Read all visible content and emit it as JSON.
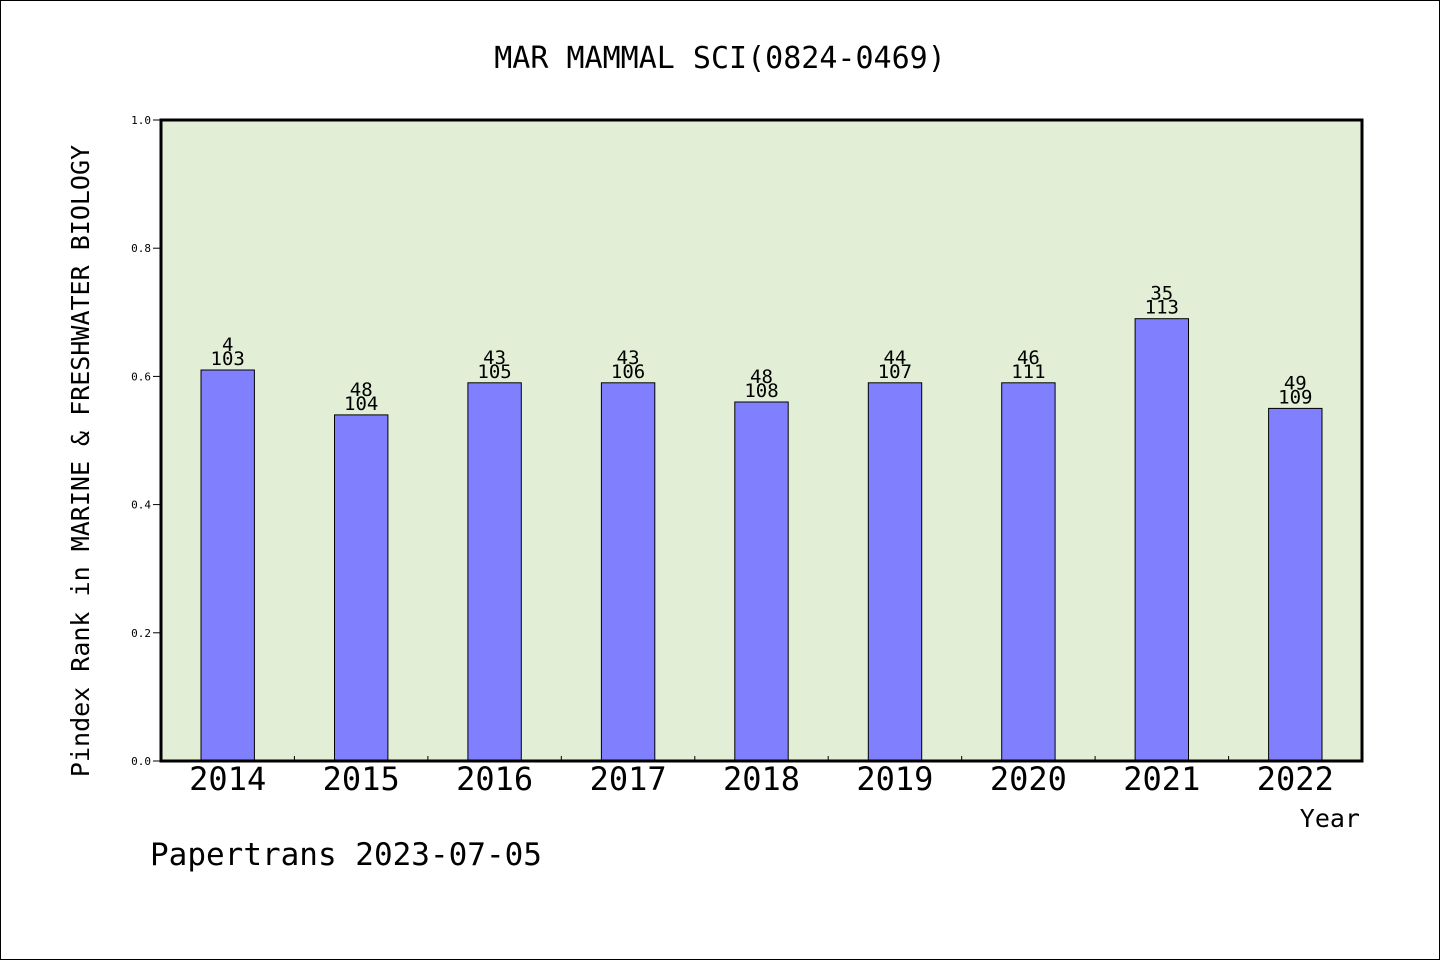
{
  "chart_data": {
    "type": "bar",
    "title": "MAR MAMMAL SCI(0824-0469)",
    "xlabel": "Year",
    "ylabel": "Pindex Rank in MARINE & FRESHWATER BIOLOGY",
    "ylim": [
      0,
      1.0
    ],
    "yticks": [
      "0.0",
      "0.2",
      "0.4",
      "0.6",
      "0.8",
      "1.0"
    ],
    "categories": [
      "2014",
      "2015",
      "2016",
      "2017",
      "2018",
      "2019",
      "2020",
      "2021",
      "2022"
    ],
    "values": [
      0.61,
      0.54,
      0.59,
      0.59,
      0.56,
      0.59,
      0.59,
      0.69,
      0.55
    ],
    "rank_labels": [
      "4",
      "48",
      "43",
      "43",
      "48",
      "44",
      "46",
      "35",
      "49"
    ],
    "total_labels": [
      "103",
      "104",
      "105",
      "106",
      "108",
      "107",
      "111",
      "113",
      "109"
    ],
    "grid": false,
    "legend": "none",
    "colors": {
      "plot_background": "#e2efd6",
      "bar_fill": "#8080ff",
      "bar_stroke": "#000000"
    }
  },
  "footer": {
    "credit": "Papertrans 2023-07-05"
  }
}
